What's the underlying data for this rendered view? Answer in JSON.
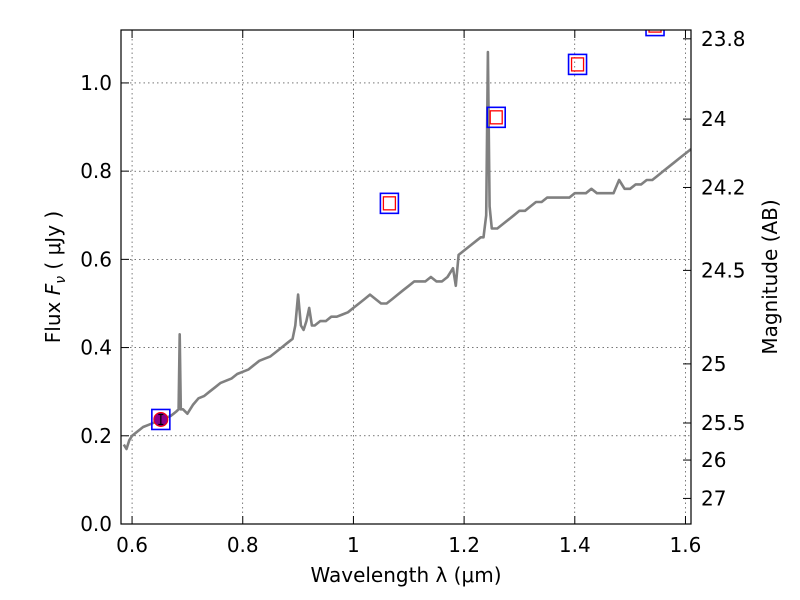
{
  "chart_data": {
    "type": "line",
    "xlabel": "Wavelength  λ (μm)",
    "ylabel": "Flux  F_ν  ( μJy )",
    "ylabel_parts": {
      "pre": "Flux  ",
      "symbol": "F",
      "sub": "ν",
      "post": "  ( μJy )"
    },
    "y2label": "Magnitude (AB)",
    "xlim": [
      0.58,
      1.61
    ],
    "ylim": [
      0.0,
      1.12
    ],
    "grid": true,
    "x_ticks": [
      {
        "value": 0.6,
        "label": "0.6"
      },
      {
        "value": 0.8,
        "label": "0.8"
      },
      {
        "value": 1.0,
        "label": "1"
      },
      {
        "value": 1.2,
        "label": "1.2"
      },
      {
        "value": 1.4,
        "label": "1.4"
      },
      {
        "value": 1.6,
        "label": "1.6"
      }
    ],
    "y_ticks": [
      {
        "value": 0.0,
        "label": "0.0"
      },
      {
        "value": 0.2,
        "label": "0.2"
      },
      {
        "value": 0.4,
        "label": "0.4"
      },
      {
        "value": 0.6,
        "label": "0.6"
      },
      {
        "value": 0.8,
        "label": "0.8"
      },
      {
        "value": 1.0,
        "label": "1.0"
      }
    ],
    "y2_ticks": [
      {
        "flux": 1.1,
        "label": "23.8"
      },
      {
        "flux": 0.918,
        "label": "24"
      },
      {
        "flux": 0.763,
        "label": "24.2"
      },
      {
        "flux": 0.575,
        "label": "24.5"
      },
      {
        "flux": 0.363,
        "label": "25"
      },
      {
        "flux": 0.229,
        "label": "25.5"
      },
      {
        "flux": 0.145,
        "label": "26"
      },
      {
        "flux": 0.058,
        "label": "27"
      }
    ],
    "series": [
      {
        "color": "#808080",
        "x": [
          0.585,
          0.59,
          0.595,
          0.6,
          0.61,
          0.62,
          0.63,
          0.64,
          0.65,
          0.66,
          0.67,
          0.675,
          0.68,
          0.684,
          0.686,
          0.688,
          0.692,
          0.7,
          0.71,
          0.72,
          0.73,
          0.74,
          0.75,
          0.76,
          0.77,
          0.78,
          0.79,
          0.8,
          0.81,
          0.82,
          0.83,
          0.84,
          0.85,
          0.86,
          0.87,
          0.88,
          0.89,
          0.895,
          0.9,
          0.905,
          0.91,
          0.915,
          0.92,
          0.925,
          0.93,
          0.94,
          0.95,
          0.96,
          0.97,
          0.98,
          0.99,
          1.0,
          1.01,
          1.02,
          1.03,
          1.04,
          1.05,
          1.06,
          1.07,
          1.08,
          1.09,
          1.1,
          1.11,
          1.12,
          1.13,
          1.14,
          1.15,
          1.16,
          1.17,
          1.18,
          1.185,
          1.19,
          1.2,
          1.21,
          1.22,
          1.23,
          1.235,
          1.24,
          1.243,
          1.246,
          1.25,
          1.26,
          1.27,
          1.28,
          1.29,
          1.3,
          1.31,
          1.32,
          1.33,
          1.34,
          1.35,
          1.36,
          1.37,
          1.38,
          1.39,
          1.4,
          1.41,
          1.42,
          1.43,
          1.44,
          1.45,
          1.46,
          1.47,
          1.48,
          1.49,
          1.5,
          1.51,
          1.52,
          1.53,
          1.54,
          1.55,
          1.56,
          1.57,
          1.58,
          1.59,
          1.6,
          1.61
        ],
        "y": [
          0.18,
          0.17,
          0.19,
          0.2,
          0.21,
          0.22,
          0.225,
          0.23,
          0.235,
          0.24,
          0.245,
          0.25,
          0.255,
          0.26,
          0.43,
          0.26,
          0.26,
          0.25,
          0.27,
          0.285,
          0.29,
          0.3,
          0.31,
          0.32,
          0.325,
          0.33,
          0.34,
          0.345,
          0.35,
          0.36,
          0.37,
          0.375,
          0.38,
          0.39,
          0.4,
          0.41,
          0.42,
          0.45,
          0.52,
          0.45,
          0.44,
          0.46,
          0.49,
          0.45,
          0.45,
          0.46,
          0.46,
          0.47,
          0.47,
          0.475,
          0.48,
          0.49,
          0.5,
          0.51,
          0.52,
          0.51,
          0.5,
          0.5,
          0.51,
          0.52,
          0.53,
          0.54,
          0.55,
          0.55,
          0.55,
          0.56,
          0.55,
          0.55,
          0.56,
          0.58,
          0.54,
          0.61,
          0.62,
          0.63,
          0.64,
          0.65,
          0.65,
          0.7,
          1.07,
          0.72,
          0.67,
          0.67,
          0.68,
          0.69,
          0.7,
          0.71,
          0.71,
          0.72,
          0.73,
          0.73,
          0.74,
          0.74,
          0.74,
          0.74,
          0.74,
          0.75,
          0.75,
          0.75,
          0.76,
          0.75,
          0.75,
          0.75,
          0.75,
          0.78,
          0.76,
          0.76,
          0.77,
          0.77,
          0.78,
          0.78,
          0.79,
          0.8,
          0.81,
          0.82,
          0.83,
          0.84,
          0.85
        ]
      }
    ],
    "photometry": [
      {
        "x": 0.652,
        "y": 0.237,
        "type": "filled"
      },
      {
        "x": 1.065,
        "y": 0.727,
        "type": "open"
      },
      {
        "x": 1.258,
        "y": 0.922,
        "type": "open"
      },
      {
        "x": 1.405,
        "y": 1.042,
        "type": "open"
      },
      {
        "x": 1.545,
        "y": 1.13,
        "type": "open"
      }
    ],
    "colors": {
      "spectrum": "#808080",
      "box_outer": "#0000ff",
      "box_inner": "#ff0000",
      "filled_marker": "#8b008b"
    }
  }
}
